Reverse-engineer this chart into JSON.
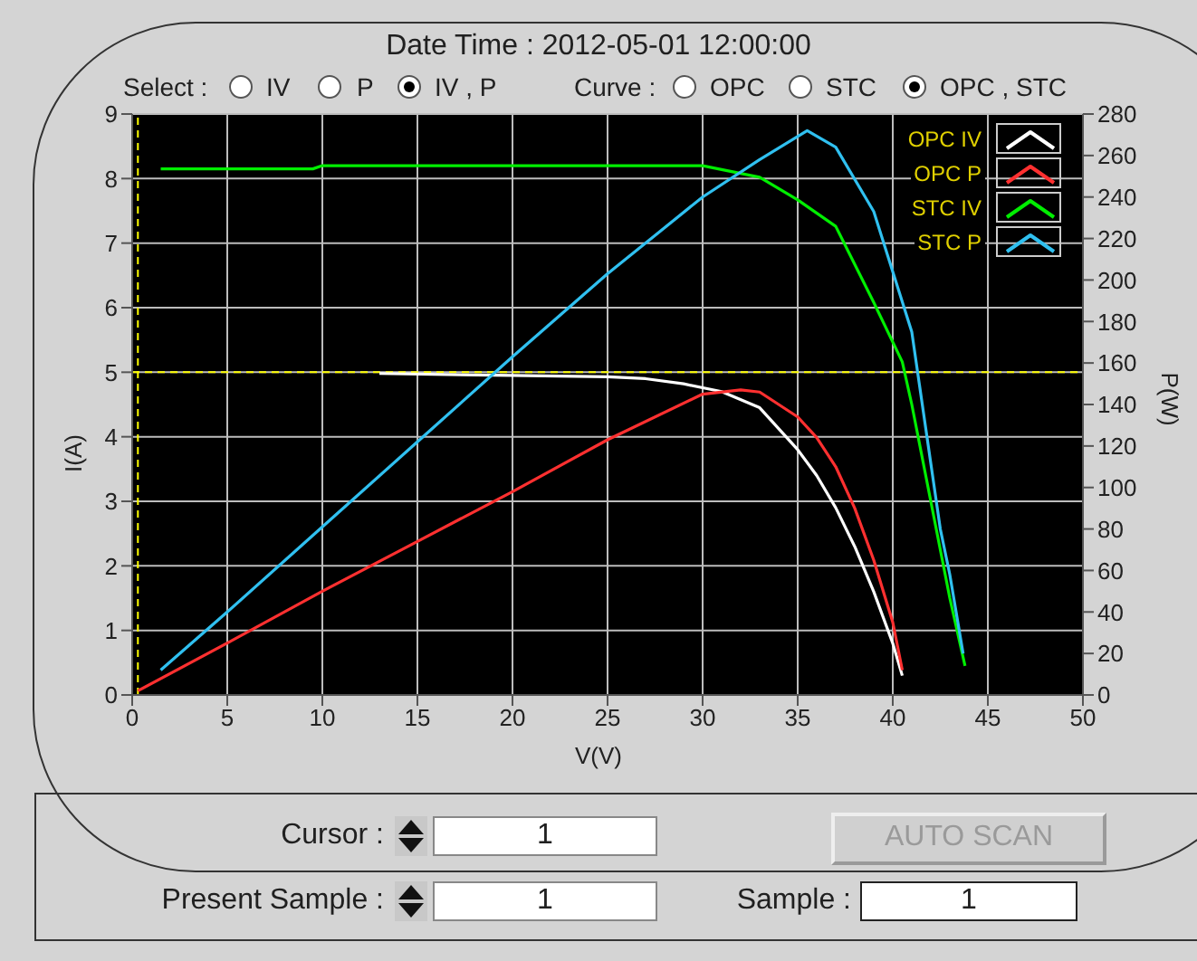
{
  "chart_data": {
    "type": "line",
    "title": "Date Time : 2012-05-01 12:00:00",
    "xlabel": "V(V)",
    "ylabel": "I(A)",
    "y2label": "P(W)",
    "xlim": [
      0,
      50
    ],
    "xticks": [
      0,
      5,
      10,
      15,
      20,
      25,
      30,
      35,
      40,
      45,
      50
    ],
    "ylim": [
      0,
      9
    ],
    "yticks": [
      0,
      1,
      2,
      3,
      4,
      5,
      6,
      7,
      8,
      9
    ],
    "y2lim": [
      0,
      280
    ],
    "y2ticks": [
      0,
      20,
      40,
      60,
      80,
      100,
      120,
      140,
      160,
      180,
      200,
      220,
      240,
      260,
      280
    ],
    "grid": true,
    "legend": "top right",
    "series": [
      {
        "name": "OPC IV",
        "color": "#ffffff",
        "x": [
          13,
          20,
          25,
          27,
          29,
          31,
          33,
          35,
          36,
          37,
          38,
          39,
          40,
          40.5
        ],
        "values": [
          4.98,
          4.95,
          4.93,
          4.9,
          4.82,
          4.7,
          4.45,
          3.8,
          3.4,
          2.9,
          2.3,
          1.6,
          0.8,
          0.3
        ]
      },
      {
        "name": "OPC P",
        "color": "#ff3030",
        "axis": "y2",
        "x": [
          0.3,
          5,
          10,
          15,
          20,
          25,
          30,
          32,
          33,
          35,
          36,
          37,
          38,
          39,
          40,
          40.5
        ],
        "values": [
          2,
          25,
          50,
          74,
          98,
          123,
          145,
          147,
          146,
          134,
          124,
          110,
          90,
          65,
          35,
          12
        ]
      },
      {
        "name": "STC IV",
        "color": "#00ee00",
        "x": [
          1.5,
          9.5,
          10,
          20,
          30,
          33,
          35,
          37,
          39,
          40.5,
          41,
          42,
          43,
          43.8
        ],
        "values": [
          8.15,
          8.15,
          8.2,
          8.2,
          8.2,
          8.02,
          7.67,
          7.26,
          6.08,
          5.16,
          4.5,
          3,
          1.5,
          0.45
        ]
      },
      {
        "name": "STC P",
        "color": "#30c0f0",
        "axis": "y2",
        "x": [
          1.5,
          5,
          10,
          15,
          20,
          25,
          30,
          33,
          35.5,
          37,
          39,
          41,
          42.5,
          43,
          43.7
        ],
        "values": [
          12,
          40,
          81,
          122,
          163,
          203,
          240,
          258,
          272,
          264,
          233,
          175,
          80,
          58,
          20
        ]
      }
    ],
    "ref_lines": [
      {
        "axis": "y",
        "value": 5,
        "color": "#ffff00",
        "line_style": "dashed"
      },
      {
        "axis": "x",
        "value": 0.3,
        "color": "#ffff00",
        "line_style": "dashed"
      }
    ],
    "annotations": [
      "Select :",
      "IV",
      "P",
      "IV , P",
      "Curve :",
      "OPC",
      "STC",
      "OPC , STC",
      "Cursor :",
      "1",
      "AUTO SCAN",
      "Present Sample :",
      "1",
      "Sample :",
      "1"
    ]
  }
}
